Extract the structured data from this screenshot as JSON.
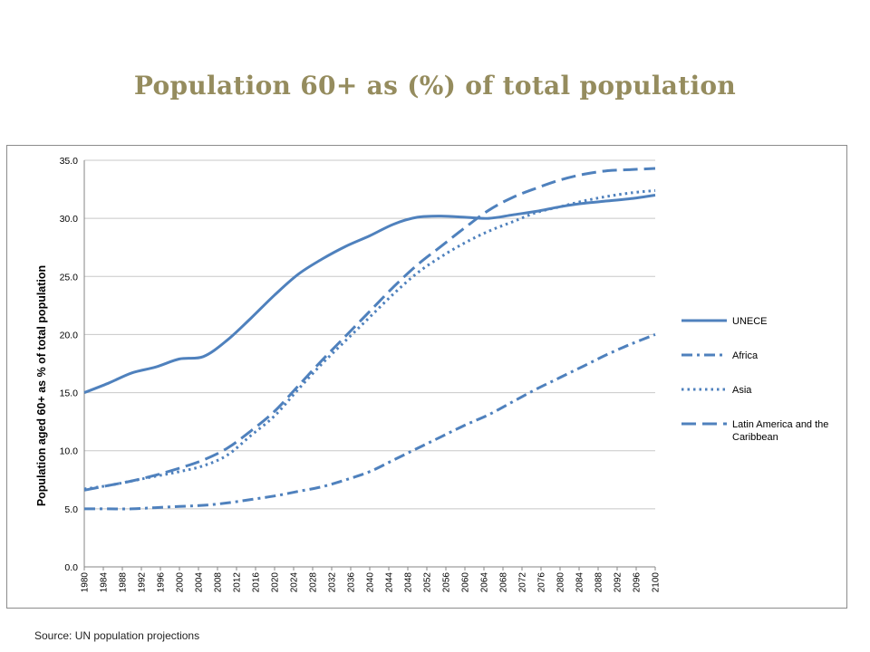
{
  "slide": {
    "title": "Population  60+ as (%) of total population",
    "source": "Source: UN population projections"
  },
  "colors": {
    "series": "#4f81bd",
    "grid": "#c8c8c8",
    "axis": "#858585",
    "title": "#958c5e"
  },
  "chart_data": {
    "type": "line",
    "title": "",
    "xlabel": "",
    "ylabel": "Population aged 60+ as % of total population",
    "xlim": [
      1980,
      2100
    ],
    "ylim": [
      0,
      35
    ],
    "y_ticks": [
      "0.0",
      "5.0",
      "10.0",
      "15.0",
      "20.0",
      "25.0",
      "30.0",
      "35.0"
    ],
    "x_ticks": [
      "1980",
      "1984",
      "1988",
      "1992",
      "1996",
      "2000",
      "2004",
      "2008",
      "2012",
      "2016",
      "2020",
      "2024",
      "2028",
      "2032",
      "2036",
      "2040",
      "2044",
      "2048",
      "2052",
      "2056",
      "2060",
      "2064",
      "2068",
      "2072",
      "2076",
      "2080",
      "2084",
      "2088",
      "2092",
      "2096",
      "2100"
    ],
    "grid": true,
    "legend_position": "right",
    "x": [
      1980,
      1985,
      1990,
      1995,
      2000,
      2005,
      2010,
      2015,
      2020,
      2025,
      2030,
      2035,
      2040,
      2045,
      2050,
      2055,
      2060,
      2065,
      2070,
      2075,
      2080,
      2085,
      2090,
      2095,
      2100
    ],
    "series": [
      {
        "name": "UNECE",
        "style": "solid",
        "values": [
          15.0,
          15.8,
          16.7,
          17.2,
          17.9,
          18.1,
          19.5,
          21.4,
          23.4,
          25.2,
          26.5,
          27.6,
          28.5,
          29.5,
          30.1,
          30.2,
          30.1,
          30.0,
          30.3,
          30.6,
          31.0,
          31.3,
          31.5,
          31.7,
          32.0
        ]
      },
      {
        "name": "Africa",
        "style": "dash-dot",
        "values": [
          5.0,
          5.0,
          5.0,
          5.1,
          5.2,
          5.3,
          5.5,
          5.8,
          6.1,
          6.5,
          6.9,
          7.5,
          8.2,
          9.2,
          10.2,
          11.2,
          12.2,
          13.1,
          14.2,
          15.3,
          16.3,
          17.3,
          18.3,
          19.2,
          20.0
        ]
      },
      {
        "name": "Asia",
        "style": "dotted",
        "values": [
          6.7,
          7.0,
          7.4,
          7.8,
          8.2,
          8.7,
          9.6,
          11.3,
          13.0,
          15.3,
          17.5,
          19.5,
          21.5,
          23.5,
          25.3,
          26.7,
          27.9,
          28.9,
          29.7,
          30.5,
          31.0,
          31.5,
          31.9,
          32.2,
          32.4
        ]
      },
      {
        "name": "Latin America and the Caribbean",
        "style": "long-dash",
        "values": [
          6.6,
          7.0,
          7.4,
          7.9,
          8.5,
          9.2,
          10.2,
          11.7,
          13.4,
          15.6,
          17.8,
          19.9,
          22.0,
          24.1,
          26.0,
          27.6,
          29.2,
          30.7,
          31.8,
          32.6,
          33.3,
          33.8,
          34.1,
          34.2,
          34.3
        ]
      }
    ]
  }
}
